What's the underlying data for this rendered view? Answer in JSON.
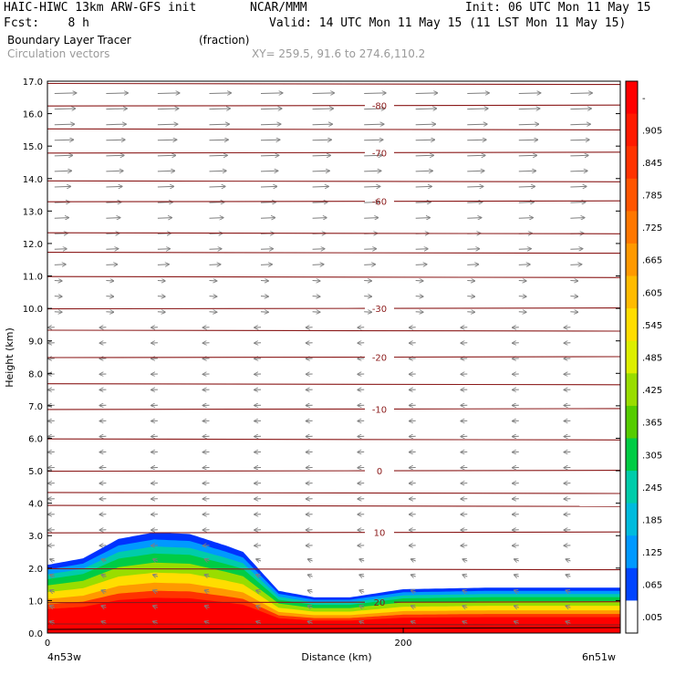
{
  "header": {
    "model": "HAIC-HIWC 13km ARW-GFS init",
    "org": "NCAR/MMM",
    "init": "Init: 06 UTC Mon 11 May 15",
    "fcst": "Fcst:    8 h",
    "valid": "Valid: 14 UTC Mon 11 May 15 (11 LST Mon 11 May 15)",
    "field": "Boundary Layer Tracer",
    "field_units": "(fraction)",
    "overlay": "Circulation vectors",
    "xy": "XY= 259.5, 91.6 to 274.6,110.2"
  },
  "colors": {
    "contour": "#8b1a1a",
    "vector": "#7f7f7f",
    "axis": "#000000"
  },
  "chart_data": {
    "type": "heatmap",
    "xlabel": "Distance (km)",
    "ylabel": "Height (km)",
    "xlim": [
      0,
      322
    ],
    "ylim": [
      0,
      17
    ],
    "y_ticks": [
      "0.0",
      "1.0",
      "2.0",
      "3.0",
      "4.0",
      "5.0",
      "6.0",
      "7.0",
      "8.0",
      "9.0",
      "10.0",
      "11.0",
      "12.0",
      "13.0",
      "14.0",
      "15.0",
      "16.0",
      "17.0"
    ],
    "x_ticks": [
      {
        "value": 0,
        "label": "0"
      },
      {
        "value": 200,
        "label": "200"
      }
    ],
    "x_start_label": "4n53w",
    "x_end_label": "6n51w",
    "colorbar": {
      "labels": [
        "-",
        ".905",
        ".845",
        ".785",
        ".725",
        ".665",
        ".605",
        ".545",
        ".485",
        ".425",
        ".365",
        ".305",
        ".245",
        ".185",
        ".125",
        ".065",
        ".005"
      ],
      "colors": [
        "#ff0000",
        "#ff1a00",
        "#ff3300",
        "#ff5500",
        "#ff7700",
        "#ff9900",
        "#ffbb00",
        "#ffdd00",
        "#ddee00",
        "#99dd00",
        "#55cc00",
        "#00cc44",
        "#00ccaa",
        "#00bbdd",
        "#0099ff",
        "#0044ff",
        "#ffffff"
      ]
    },
    "temperature_contours": [
      {
        "label": "-80",
        "height": 16.25
      },
      {
        "label": "-70",
        "height": 14.8
      },
      {
        "label": "-60",
        "height": 13.3
      },
      {
        "label": "-30",
        "height": 10.0
      },
      {
        "label": "-20",
        "height": 8.5
      },
      {
        "label": "-10",
        "height": 6.9
      },
      {
        "label": "0",
        "height": 5.0
      },
      {
        "label": "10",
        "height": 3.1
      },
      {
        "label": "20",
        "height": 0.95
      }
    ],
    "tracer_top_profile": {
      "x_km": [
        0,
        20,
        40,
        60,
        80,
        100,
        110,
        120,
        130,
        150,
        170,
        200,
        250,
        300,
        322
      ],
      "top_km": [
        2.1,
        2.3,
        2.9,
        3.1,
        3.05,
        2.7,
        2.5,
        1.9,
        1.3,
        1.1,
        1.1,
        1.35,
        1.4,
        1.4,
        1.4
      ]
    }
  }
}
